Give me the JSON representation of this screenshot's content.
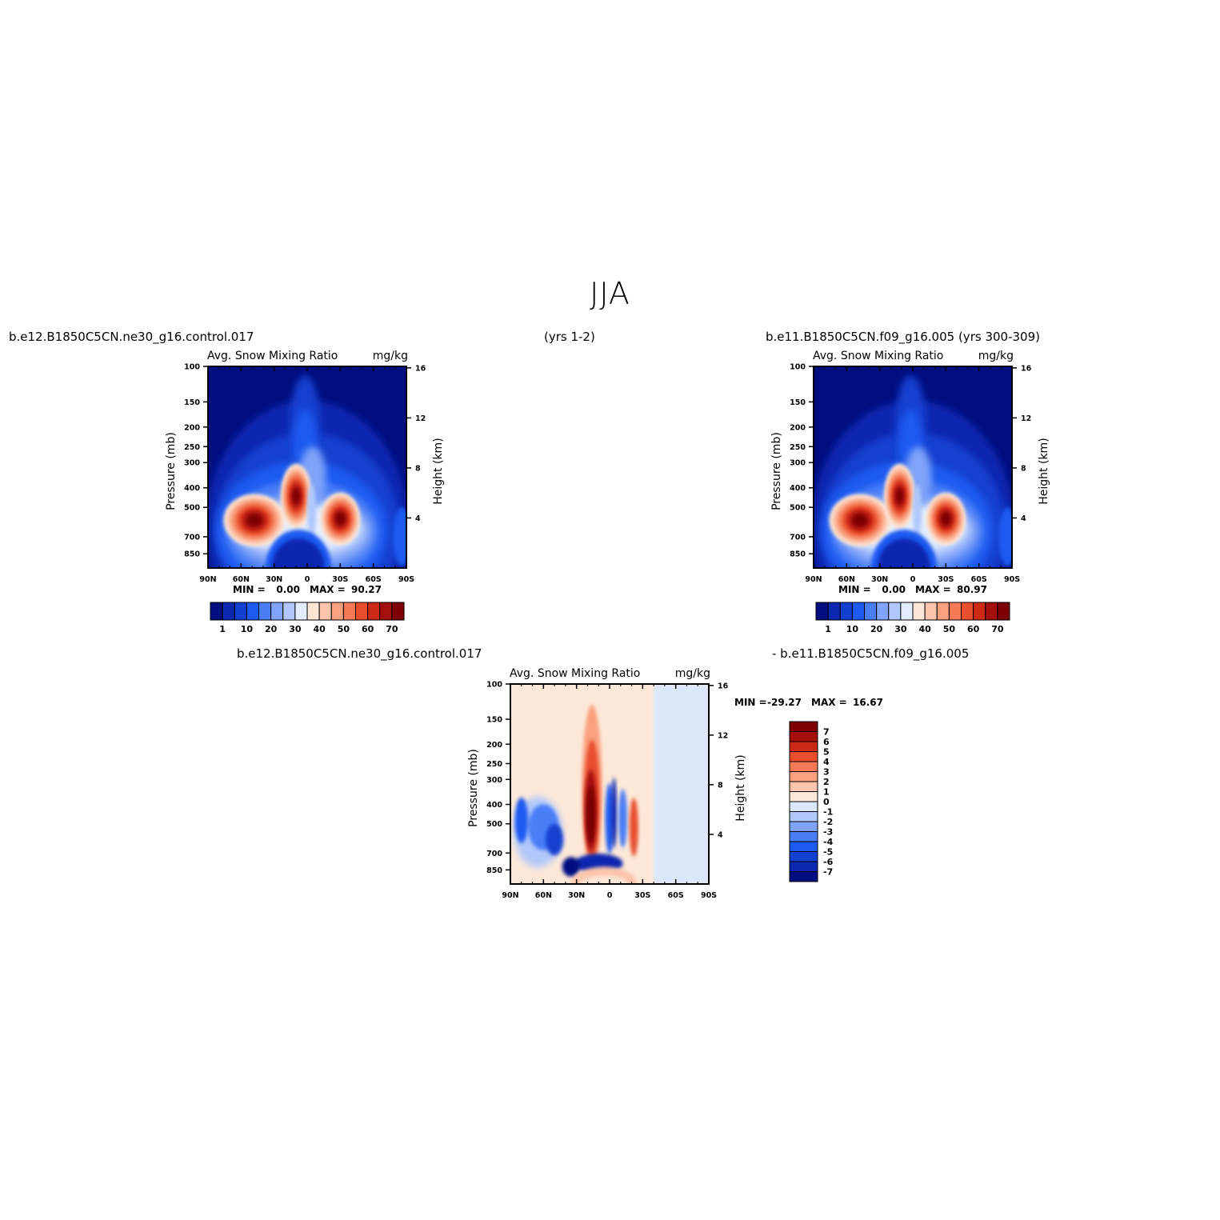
{
  "figure": {
    "title": "JJA",
    "case1": "b.e12.B1850C5CN.ne30_g16.control.017",
    "case1_years": "(yrs 1-2)",
    "case2": "b.e11.B1850C5CN.f09_g16.005 (yrs 300-309)",
    "diff_left": "b.e12.B1850C5CN.ne30_g16.control.017",
    "diff_right": "- b.e11.B1850C5CN.f09_g16.005"
  },
  "colors": {
    "abs_scale": [
      "#000e80",
      "#0a28b0",
      "#1240d0",
      "#1e5af0",
      "#4a7ef6",
      "#7fa3f8",
      "#b0c8fb",
      "#e3edfd",
      "#fde6d6",
      "#fcc5ac",
      "#f9a07e",
      "#f47954",
      "#e84d2e",
      "#cc2a15",
      "#a50f0c",
      "#7c0004"
    ],
    "diff_scale": [
      "#000e80",
      "#0a28b0",
      "#1240d0",
      "#1e5af0",
      "#4a7ef6",
      "#7fa3f8",
      "#b0c8fb",
      "#dbe8fc",
      "#fde8d8",
      "#fcc5ac",
      "#f9a07e",
      "#f47954",
      "#e84d2e",
      "#cc2a15",
      "#a50f0c",
      "#7c0004"
    ]
  },
  "chart_data": [
    {
      "id": "case1",
      "type": "heatmap",
      "title": "Avg. Snow Mixing Ratio",
      "units": "mg/kg",
      "xlabel": "",
      "ylabel": "Pressure (mb)",
      "ylabel_right": "Height (km)",
      "x_ticks": [
        "90N",
        "60N",
        "30N",
        "0",
        "30S",
        "60S",
        "90S"
      ],
      "y_ticks": [
        100,
        150,
        200,
        250,
        300,
        400,
        500,
        700,
        850
      ],
      "y_right_ticks": [
        16,
        12,
        8,
        4
      ],
      "y_scale": "log",
      "ylim": [
        100,
        1000
      ],
      "min_label": "MIN =",
      "min_value": "0.00",
      "max_label": "MAX =",
      "max_value": "90.27",
      "colorbar_labels": [
        "1",
        "10",
        "20",
        "30",
        "40",
        "50",
        "60",
        "70"
      ],
      "features": [
        {
          "lat": -12,
          "p": 430,
          "value": 90
        },
        {
          "lat": -43,
          "p": 580,
          "value": 72
        },
        {
          "lat": 30,
          "p": 580,
          "value": 70
        }
      ]
    },
    {
      "id": "case2",
      "type": "heatmap",
      "title": "Avg. Snow Mixing Ratio",
      "units": "mg/kg",
      "xlabel": "",
      "ylabel": "Pressure (mb)",
      "ylabel_right": "Height (km)",
      "x_ticks": [
        "90N",
        "60N",
        "30N",
        "0",
        "30S",
        "60S",
        "90S"
      ],
      "y_ticks": [
        100,
        150,
        200,
        250,
        300,
        400,
        500,
        700,
        850
      ],
      "y_right_ticks": [
        16,
        12,
        8,
        4
      ],
      "y_scale": "log",
      "ylim": [
        100,
        1000
      ],
      "min_label": "MIN =",
      "min_value": "0.00",
      "max_label": "MAX =",
      "max_value": "80.97",
      "colorbar_labels": [
        "1",
        "10",
        "20",
        "30",
        "40",
        "50",
        "60",
        "70"
      ],
      "features": [
        {
          "lat": -10,
          "p": 440,
          "value": 81
        },
        {
          "lat": -45,
          "p": 580,
          "value": 74
        },
        {
          "lat": 30,
          "p": 560,
          "value": 70
        }
      ]
    },
    {
      "id": "diff",
      "type": "heatmap",
      "title": "Avg. Snow Mixing Ratio",
      "units": "mg/kg",
      "xlabel": "",
      "ylabel": "Pressure (mb)",
      "ylabel_right": "Height (km)",
      "x_ticks": [
        "90N",
        "60N",
        "30N",
        "0",
        "30S",
        "60S",
        "90S"
      ],
      "y_ticks": [
        100,
        150,
        200,
        250,
        300,
        400,
        500,
        700,
        850
      ],
      "y_right_ticks": [
        16,
        12,
        8,
        4
      ],
      "y_scale": "log",
      "ylim": [
        100,
        1000
      ],
      "min_label": "MIN =",
      "min_value": "-29.27",
      "max_label": "MAX =",
      "max_value": "16.67",
      "colorbar_labels": [
        "7",
        "6",
        "5",
        "4",
        "3",
        "2",
        "1",
        "0",
        "-1",
        "-2",
        "-3",
        "-4",
        "-5",
        "-6",
        "-7"
      ],
      "features": [
        {
          "lat": -15,
          "p": 420,
          "value": 8
        },
        {
          "lat": 20,
          "p": 760,
          "value": -8
        },
        {
          "lat": 5,
          "p": 450,
          "value": -6
        }
      ]
    }
  ]
}
